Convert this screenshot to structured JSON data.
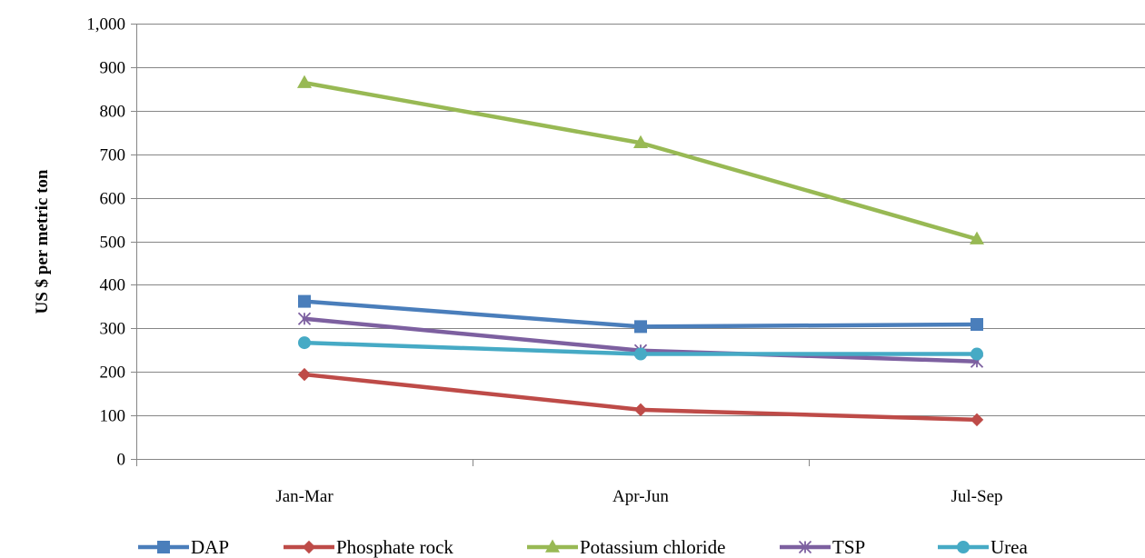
{
  "chart_data": {
    "type": "line",
    "title": "",
    "xlabel": "",
    "ylabel": "US $ per metric ton",
    "categories": [
      "Jan-Mar",
      "Apr-Jun",
      "Jul-Sep"
    ],
    "ylim": [
      0,
      1000
    ],
    "yticks": [
      0,
      100,
      200,
      300,
      400,
      500,
      600,
      700,
      800,
      900,
      1000
    ],
    "ytick_labels": [
      "0",
      "100",
      "200",
      "300",
      "400",
      "500",
      "600",
      "700",
      "800",
      "900",
      "1,000"
    ],
    "grid": true,
    "legend_position": "bottom",
    "series": [
      {
        "name": "DAP",
        "values": [
          362,
          304,
          309
        ],
        "color": "#4a7ebb",
        "marker": "square"
      },
      {
        "name": "Phosphate rock",
        "values": [
          194,
          113,
          90
        ],
        "color": "#be4b48",
        "marker": "diamond"
      },
      {
        "name": "Potassium chloride",
        "values": [
          864,
          726,
          505
        ],
        "color": "#98b954",
        "marker": "triangle"
      },
      {
        "name": "TSP",
        "values": [
          322,
          249,
          224
        ],
        "color": "#7d60a0",
        "marker": "star"
      },
      {
        "name": "Urea",
        "values": [
          267,
          241,
          241
        ],
        "color": "#46aac5",
        "marker": "circle"
      }
    ]
  }
}
